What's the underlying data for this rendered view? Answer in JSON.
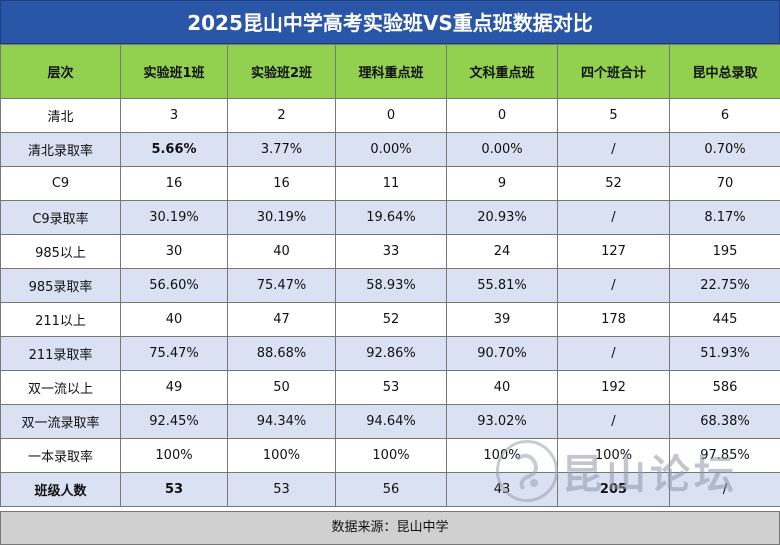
{
  "title": "2025昆山中学高考实验班VS重点班数据对比",
  "headers": [
    "层次",
    "实验班1班",
    "实验班2班",
    "理科重点班",
    "文科重点班",
    "四个班合计",
    "昆中总录取"
  ],
  "rows": [
    {
      "label": "清北",
      "cells": [
        "3",
        "2",
        "0",
        "0",
        "5",
        "6"
      ]
    },
    {
      "label": "清北录取率",
      "cells": [
        "5.66%",
        "3.77%",
        "0.00%",
        "0.00%",
        "/",
        "0.70%"
      ]
    },
    {
      "label": "C9",
      "cells": [
        "16",
        "16",
        "11",
        "9",
        "52",
        "70"
      ]
    },
    {
      "label": "C9录取率",
      "cells": [
        "30.19%",
        "30.19%",
        "19.64%",
        "20.93%",
        "/",
        "8.17%"
      ]
    },
    {
      "label": "985以上",
      "cells": [
        "30",
        "40",
        "33",
        "24",
        "127",
        "195"
      ]
    },
    {
      "label": "985录取率",
      "cells": [
        "56.60%",
        "75.47%",
        "58.93%",
        "55.81%",
        "/",
        "22.75%"
      ]
    },
    {
      "label": "211以上",
      "cells": [
        "40",
        "47",
        "52",
        "39",
        "178",
        "445"
      ]
    },
    {
      "label": "211录取率",
      "cells": [
        "75.47%",
        "88.68%",
        "92.86%",
        "90.70%",
        "/",
        "51.93%"
      ]
    },
    {
      "label": "双一流以上",
      "cells": [
        "49",
        "50",
        "53",
        "40",
        "192",
        "586"
      ]
    },
    {
      "label": "双一流录取率",
      "cells": [
        "92.45%",
        "94.34%",
        "94.64%",
        "93.02%",
        "/",
        "68.38%"
      ]
    },
    {
      "label": "一本录取率",
      "cells": [
        "100%",
        "100%",
        "100%",
        "100%",
        "100%",
        "97.85%"
      ]
    },
    {
      "label": "班级人数",
      "cells": [
        "53",
        "53",
        "56",
        "43",
        "205",
        "/"
      ]
    }
  ],
  "source": "数据来源：昆山中学",
  "watermark": "昆山论坛",
  "colors": {
    "title_bg": "#2a56a8",
    "header_bg": "#92d050",
    "alt_row_bg": "#d9e1f2",
    "footer_bg": "#d0d0d0"
  }
}
